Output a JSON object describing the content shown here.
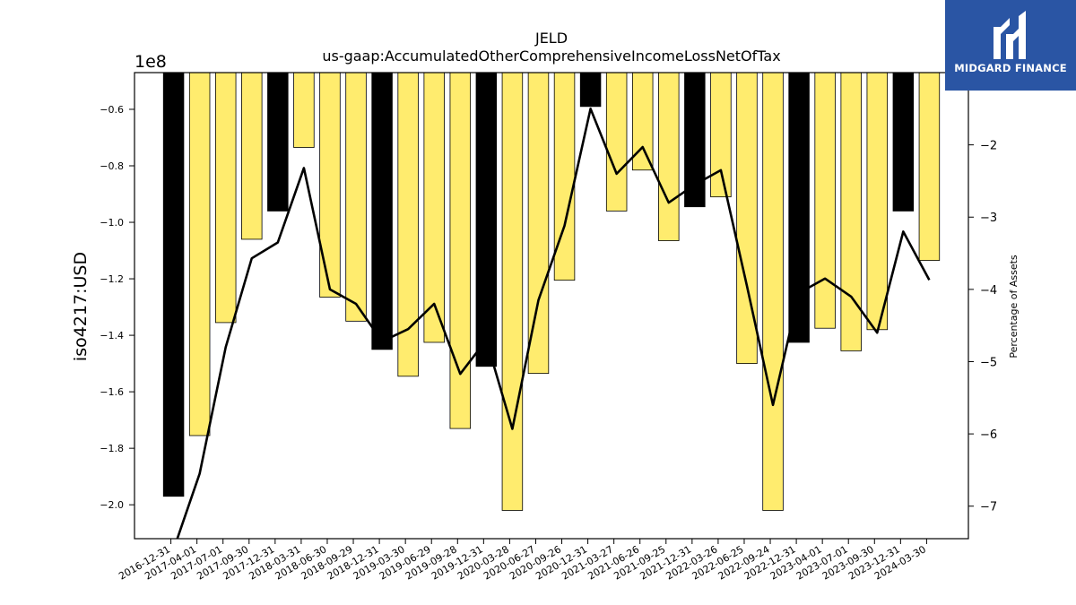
{
  "chart_data": {
    "type": "bar",
    "title": "JELD",
    "subtitle": "us-gaap:AccumulatedOtherComprehensiveIncomeLossNetOfTax",
    "ylabel": "iso4217:USD",
    "y_offset_label": "1e8",
    "y2label": "Percentage of Assets",
    "ylim": [
      -2.12,
      -0.47
    ],
    "yticks": [
      -0.6,
      -0.8,
      -1.0,
      -1.2,
      -1.4,
      -1.6,
      -1.8,
      -2.0
    ],
    "y2lim": [
      -7.45,
      -1.0
    ],
    "y2ticks": [
      -2,
      -3,
      -4,
      -5,
      -6,
      -7
    ],
    "grid": false,
    "categories": [
      "2016-12-31",
      "2017-04-01",
      "2017-07-01",
      "2017-09-30",
      "2017-12-31",
      "2018-03-31",
      "2018-06-30",
      "2018-09-29",
      "2018-12-31",
      "2019-03-30",
      "2019-06-29",
      "2019-09-28",
      "2019-12-31",
      "2020-03-28",
      "2020-06-27",
      "2020-09-26",
      "2020-12-31",
      "2021-03-27",
      "2021-06-26",
      "2021-09-25",
      "2021-12-31",
      "2022-03-26",
      "2022-06-25",
      "2022-09-24",
      "2022-12-31",
      "2023-04-01",
      "2023-07-01",
      "2023-09-30",
      "2023-12-31",
      "2024-03-30"
    ],
    "values": [
      -1.97,
      -1.755,
      -1.355,
      -1.06,
      -0.96,
      -0.735,
      -1.265,
      -1.35,
      -1.45,
      -1.545,
      -1.425,
      -1.73,
      -1.51,
      -2.02,
      -1.535,
      -1.205,
      -0.59,
      -0.96,
      -0.815,
      -1.065,
      -0.945,
      -0.91,
      -1.5,
      -2.02,
      -1.425,
      -1.375,
      -1.455,
      -1.38,
      -0.96,
      -1.135
    ],
    "highlight_indices": [
      0,
      4,
      8,
      12,
      16,
      20,
      24,
      28
    ],
    "series": [
      {
        "name": "",
        "type": "line",
        "axis": "right",
        "values": [
          -7.6,
          -6.55,
          -4.8,
          -3.57,
          -3.35,
          -2.32,
          -4.0,
          -4.2,
          -4.72,
          -4.55,
          -4.2,
          -5.17,
          -4.7,
          -5.93,
          -4.15,
          -3.12,
          -1.5,
          -2.4,
          -2.03,
          -2.8,
          -2.55,
          -2.35,
          -3.95,
          -5.6,
          -4.05,
          -3.85,
          -4.1,
          -4.6,
          -3.2,
          -3.87
        ]
      }
    ],
    "colors": {
      "bar": "#ffec6e",
      "bar_highlight": "#000000",
      "line": "#000000",
      "edge": "#000000"
    }
  },
  "logo": {
    "text": "MIDGARD FINANCE",
    "color": "#2a55a4"
  }
}
